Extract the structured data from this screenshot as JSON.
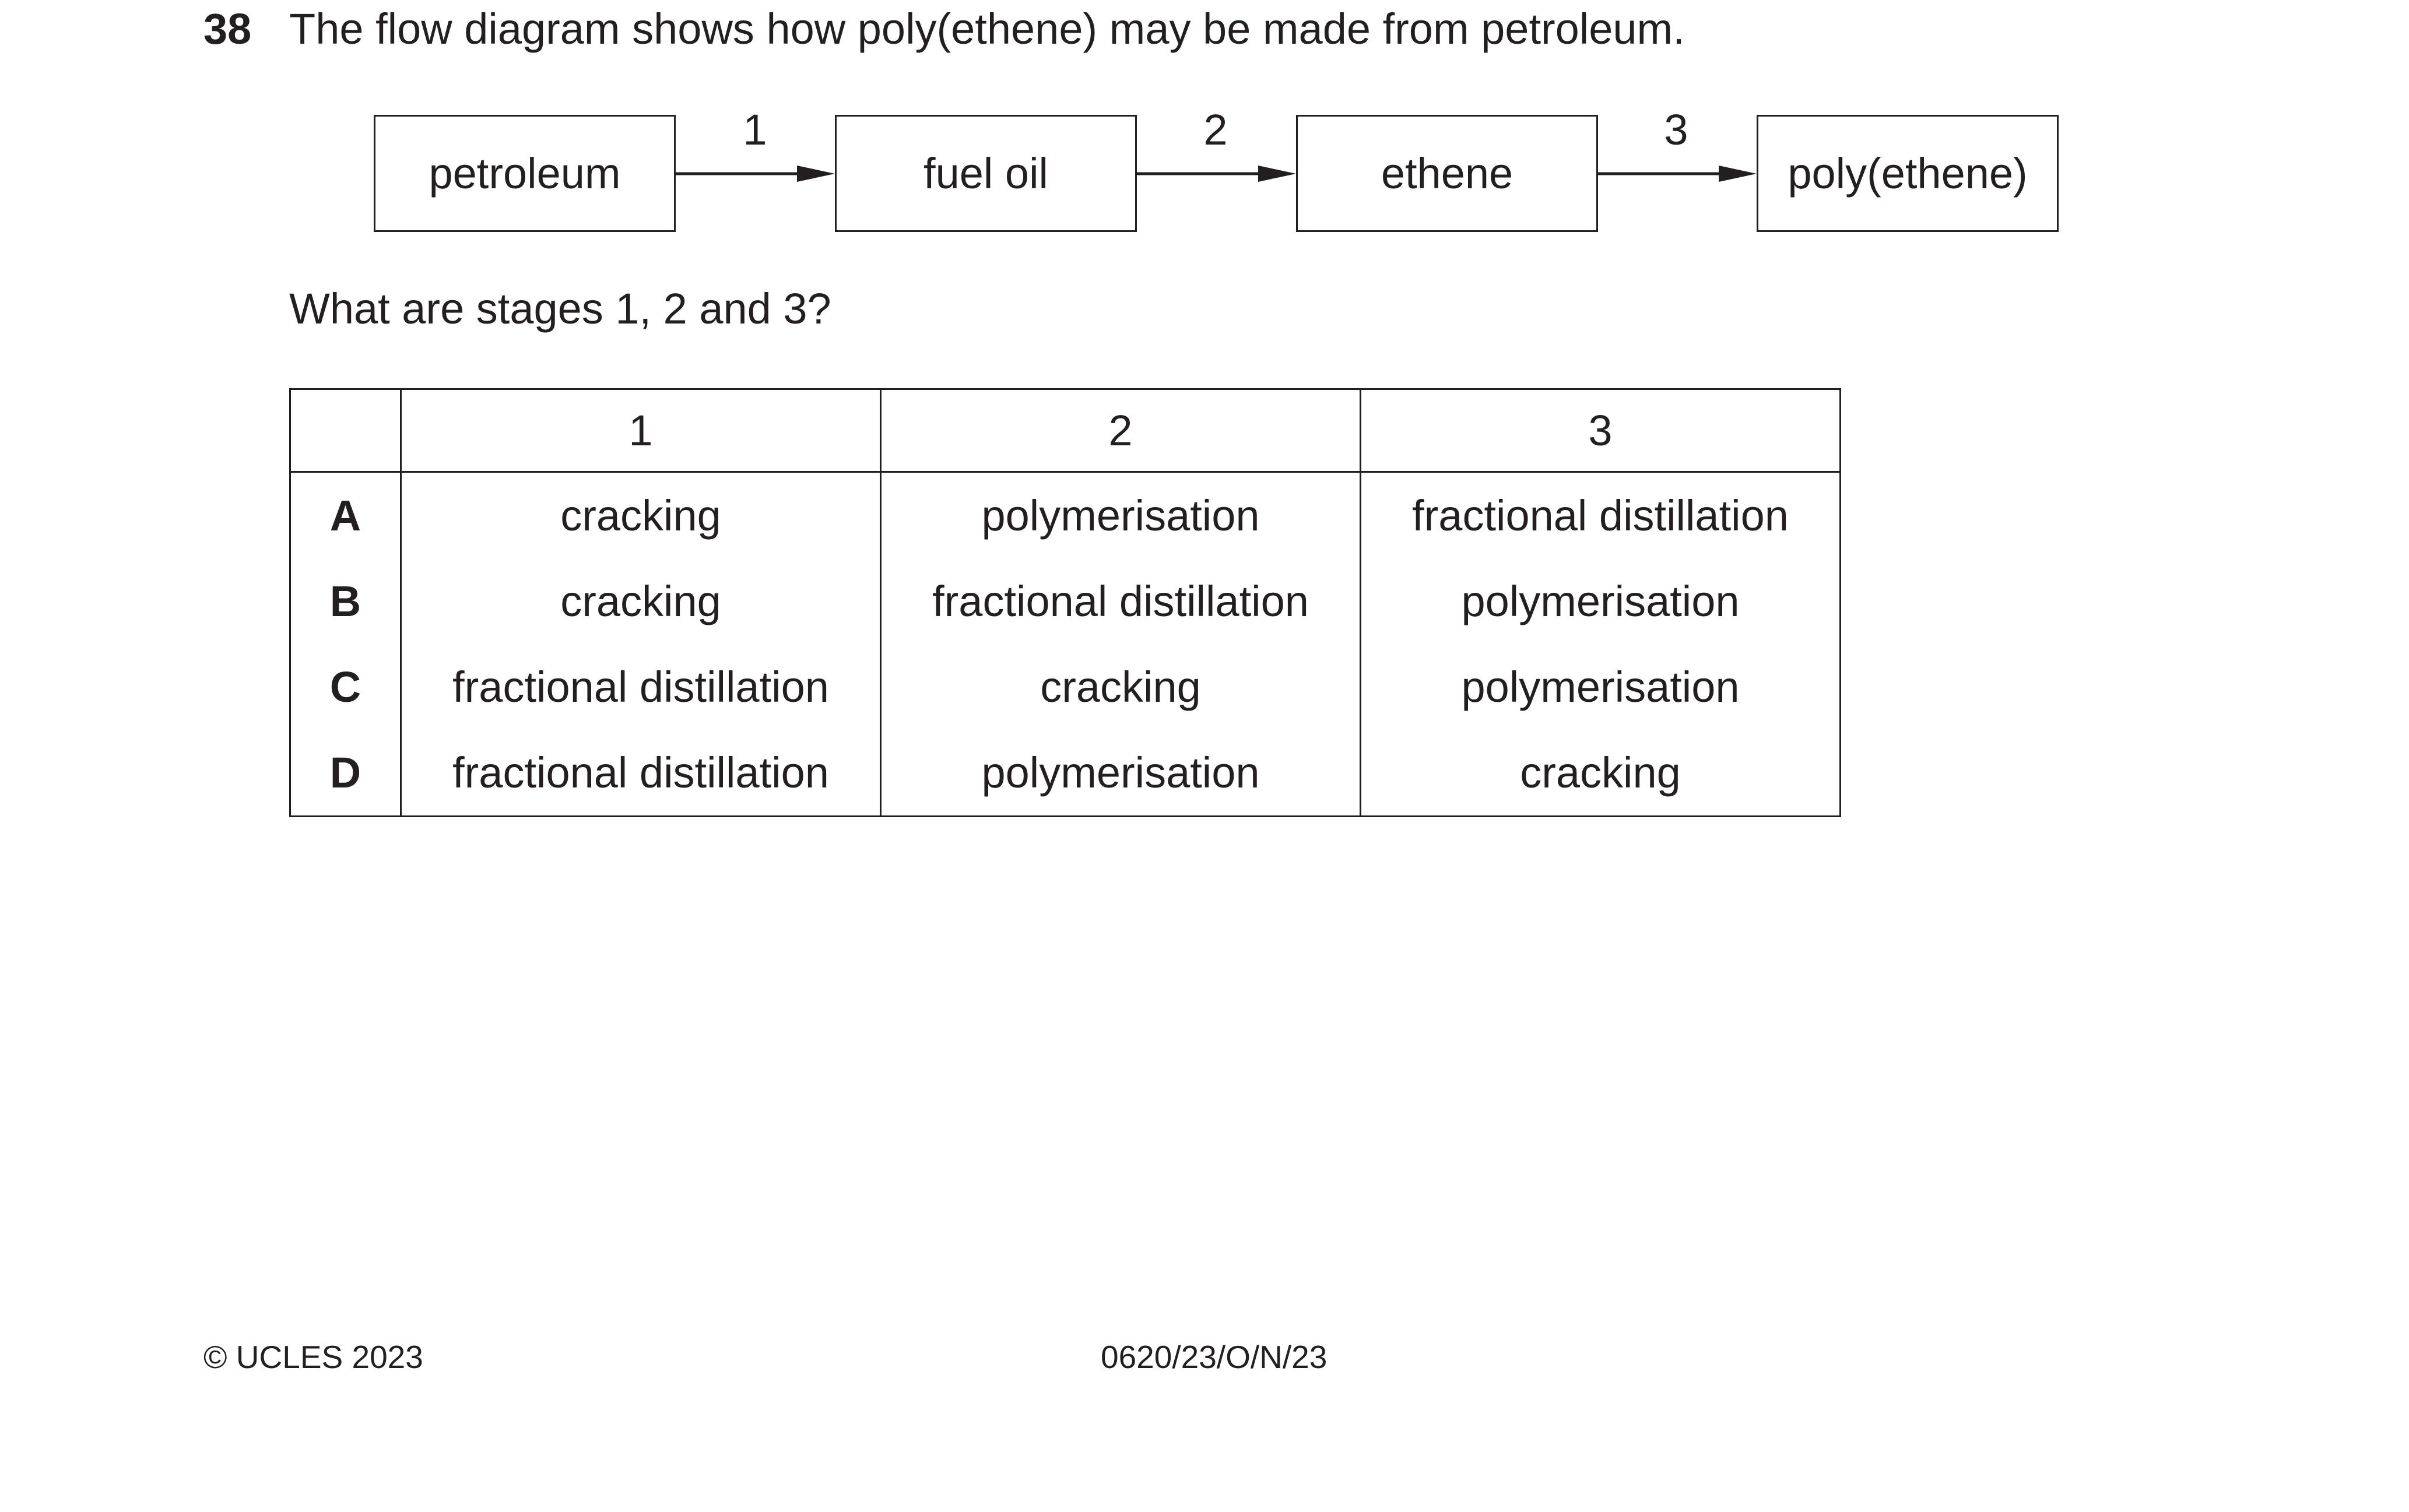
{
  "question": {
    "number": "38",
    "text": "The flow diagram shows how poly(ethene) may be made from petroleum.",
    "sub_question": "What are stages 1, 2 and 3?"
  },
  "flow_diagram": {
    "boxes": [
      "petroleum",
      "fuel oil",
      "ethene",
      "poly(ethene)"
    ],
    "stages": [
      "1",
      "2",
      "3"
    ]
  },
  "options_table": {
    "headers": [
      "",
      "1",
      "2",
      "3"
    ],
    "rows": [
      {
        "letter": "A",
        "cells": [
          "cracking",
          "polymerisation",
          "fractional distillation"
        ]
      },
      {
        "letter": "B",
        "cells": [
          "cracking",
          "fractional distillation",
          "polymerisation"
        ]
      },
      {
        "letter": "C",
        "cells": [
          "fractional distillation",
          "cracking",
          "polymerisation"
        ]
      },
      {
        "letter": "D",
        "cells": [
          "fractional distillation",
          "polymerisation",
          "cracking"
        ]
      }
    ]
  },
  "footer": {
    "copyright": "© UCLES 2023",
    "paper_code": "0620/23/O/N/23"
  }
}
